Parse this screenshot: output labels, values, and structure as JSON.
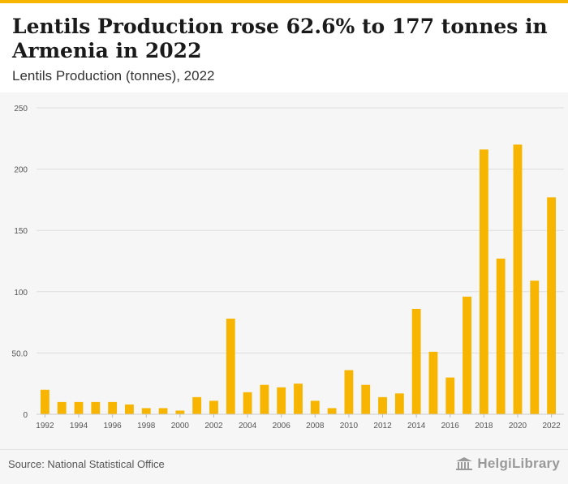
{
  "header": {
    "headline": "Lentils Production rose 62.6% to 177 tonnes in Armenia in 2022",
    "subtitle": "Lentils Production (tonnes), 2022"
  },
  "footer": {
    "source": "Source: National Statistical Office",
    "brand": "HelgiLibrary",
    "brand_icon": "library-building-icon"
  },
  "colors": {
    "bar": "#f7b500",
    "accent": "#f7b500",
    "grid": "#dddddd",
    "axis_text": "#555555"
  },
  "chart_data": {
    "type": "bar",
    "title": "Lentils Production (tonnes), 2022",
    "xlabel": "",
    "ylabel": "",
    "ylim": [
      0,
      250
    ],
    "yticks": [
      0,
      50,
      100,
      150,
      200,
      250
    ],
    "ytick_labels": [
      "0",
      "50.0",
      "100",
      "150",
      "200",
      "250"
    ],
    "xtick_labels": [
      "1992",
      "1994",
      "1996",
      "1998",
      "2000",
      "2002",
      "2004",
      "2006",
      "2008",
      "2010",
      "2012",
      "2014",
      "2016",
      "2018",
      "2020",
      "2022"
    ],
    "grid": true,
    "legend": "none",
    "categories": [
      "1992",
      "1993",
      "1994",
      "1995",
      "1996",
      "1997",
      "1998",
      "1999",
      "2000",
      "2001",
      "2002",
      "2003",
      "2004",
      "2005",
      "2006",
      "2007",
      "2008",
      "2009",
      "2010",
      "2011",
      "2012",
      "2013",
      "2014",
      "2015",
      "2016",
      "2017",
      "2018",
      "2019",
      "2020",
      "2021",
      "2022"
    ],
    "values": [
      20,
      10,
      10,
      10,
      10,
      8,
      5,
      5,
      3,
      14,
      11,
      78,
      18,
      24,
      22,
      25,
      11,
      5,
      36,
      24,
      14,
      17,
      86,
      51,
      30,
      96,
      216,
      127,
      220,
      109,
      177
    ]
  }
}
